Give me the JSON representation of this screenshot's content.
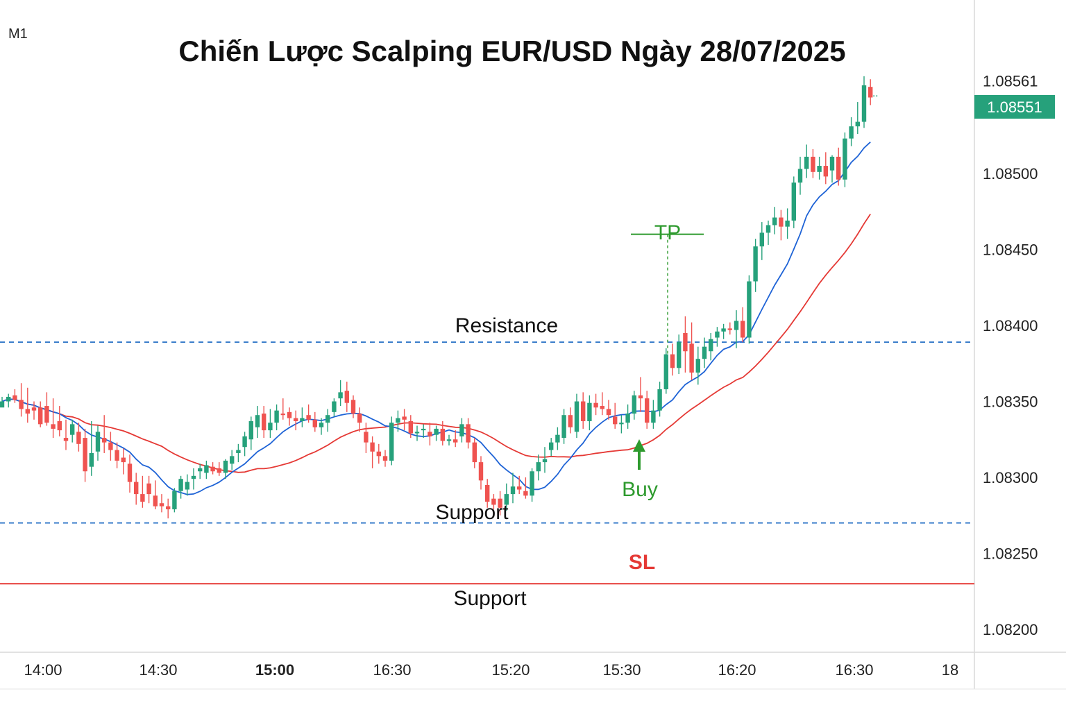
{
  "chart_data": {
    "type": "candlestick",
    "title": "Chiến Lược Scalping EUR/USD Ngày 28/07/2025",
    "timeframe": "M1",
    "y_axis": {
      "ticks": [
        "1.08200",
        "1.08250",
        "1.08300",
        "1.08350",
        "1.08400",
        "1.08450",
        "1.08500",
        "1.08561"
      ],
      "tick_values": [
        1.082,
        1.0825,
        1.083,
        1.0835,
        1.084,
        1.0845,
        1.085,
        1.08561
      ],
      "range": [
        1.08185,
        1.08585
      ],
      "position": "right"
    },
    "x_axis": {
      "labels": [
        "14:00",
        "14:30",
        "15:00",
        "16:30",
        "15:20",
        "15:30",
        "16:20",
        "16:30",
        "18"
      ],
      "bold_label": "15:00"
    },
    "current_price": {
      "label": "1.08551",
      "value": 1.08551,
      "color": "#26a17b"
    },
    "levels": [
      {
        "name": "resistance",
        "label": "Resistance",
        "value": 1.08389,
        "style": "dashed",
        "color": "#1565c0"
      },
      {
        "name": "support",
        "label": "Support",
        "value": 1.0827,
        "style": "dashed",
        "color": "#1565c0"
      },
      {
        "name": "stop-loss",
        "label": "SL",
        "value": 1.0823,
        "style": "solid",
        "color": "#e53935"
      }
    ],
    "lower_label": "Support",
    "take_profit": {
      "label": "TP",
      "value": 1.0846
    },
    "entry": {
      "label": "Buy",
      "value": 1.08326
    },
    "colors": {
      "up": "#26a17b",
      "down": "#ef5350",
      "ma_fast": "#1e63d6",
      "ma_slow": "#e53935",
      "tp": "#2e9a2e"
    },
    "candles": [
      [
        1.08346,
        1.08353,
        1.08349,
        1.0835
      ],
      [
        1.0835,
        1.08355,
        1.08346,
        1.08353
      ],
      [
        1.08354,
        1.08358,
        1.08349,
        1.08351
      ],
      [
        1.08351,
        1.08362,
        1.0834,
        1.08345
      ],
      [
        1.08345,
        1.08359,
        1.08336,
        1.08342
      ],
      [
        1.08346,
        1.0835,
        1.08338,
        1.08344
      ],
      [
        1.08346,
        1.0835,
        1.08333,
        1.08335
      ],
      [
        1.08347,
        1.08356,
        1.08334,
        1.08336
      ],
      [
        1.08335,
        1.08352,
        1.08326,
        1.08332
      ],
      [
        1.08337,
        1.08347,
        1.08327,
        1.08331
      ],
      [
        1.08326,
        1.08338,
        1.08318,
        1.08324
      ],
      [
        1.08328,
        1.08338,
        1.08323,
        1.08335
      ],
      [
        1.0833,
        1.08336,
        1.08317,
        1.08322
      ],
      [
        1.08326,
        1.08332,
        1.08297,
        1.08304
      ],
      [
        1.08307,
        1.08337,
        1.08301,
        1.08316
      ],
      [
        1.08317,
        1.08334,
        1.08311,
        1.0833
      ],
      [
        1.08326,
        1.08341,
        1.08316,
        1.08323
      ],
      [
        1.08323,
        1.0833,
        1.08311,
        1.08318
      ],
      [
        1.08318,
        1.08323,
        1.08306,
        1.08311
      ],
      [
        1.08313,
        1.08319,
        1.08302,
        1.0831
      ],
      [
        1.08309,
        1.08315,
        1.0829,
        1.08297
      ],
      [
        1.08297,
        1.08303,
        1.08282,
        1.08289
      ],
      [
        1.08289,
        1.08301,
        1.0828,
        1.08284
      ],
      [
        1.08296,
        1.08301,
        1.08283,
        1.08289
      ],
      [
        1.08288,
        1.08298,
        1.08279,
        1.08281
      ],
      [
        1.08283,
        1.08289,
        1.08277,
        1.08281
      ],
      [
        1.08281,
        1.08286,
        1.08273,
        1.08279
      ],
      [
        1.08279,
        1.08293,
        1.08277,
        1.08291
      ],
      [
        1.08291,
        1.08301,
        1.08286,
        1.08299
      ],
      [
        1.08292,
        1.08302,
        1.08288,
        1.08297
      ],
      [
        1.08299,
        1.08306,
        1.08292,
        1.08301
      ],
      [
        1.08304,
        1.08309,
        1.08299,
        1.08306
      ],
      [
        1.08303,
        1.08311,
        1.08299,
        1.08308
      ],
      [
        1.08307,
        1.0831,
        1.08302,
        1.08304
      ],
      [
        1.08306,
        1.0831,
        1.08301,
        1.08303
      ],
      [
        1.08303,
        1.08312,
        1.08299,
        1.08311
      ],
      [
        1.08309,
        1.08318,
        1.08305,
        1.08314
      ],
      [
        1.08316,
        1.08322,
        1.0831,
        1.08318
      ],
      [
        1.0832,
        1.0833,
        1.08314,
        1.08327
      ],
      [
        1.08325,
        1.0834,
        1.08318,
        1.08337
      ],
      [
        1.08333,
        1.08347,
        1.08326,
        1.08341
      ],
      [
        1.08342,
        1.08347,
        1.08326,
        1.08331
      ],
      [
        1.08331,
        1.08345,
        1.08326,
        1.08336
      ],
      [
        1.08336,
        1.08348,
        1.08331,
        1.08344
      ],
      [
        1.08342,
        1.08352,
        1.08338,
        1.08341
      ],
      [
        1.08343,
        1.08346,
        1.08334,
        1.08339
      ],
      [
        1.08339,
        1.08344,
        1.08331,
        1.08337
      ],
      [
        1.08337,
        1.08346,
        1.08333,
        1.08339
      ],
      [
        1.08341,
        1.08348,
        1.08336,
        1.08338
      ],
      [
        1.08338,
        1.08343,
        1.0833,
        1.08333
      ],
      [
        1.08333,
        1.08339,
        1.08328,
        1.08336
      ],
      [
        1.08336,
        1.08345,
        1.0833,
        1.08341
      ],
      [
        1.08343,
        1.08352,
        1.0834,
        1.0835
      ],
      [
        1.08352,
        1.08364,
        1.08347,
        1.08356
      ],
      [
        1.08357,
        1.08363,
        1.08343,
        1.08349
      ],
      [
        1.08351,
        1.08354,
        1.08339,
        1.08342
      ],
      [
        1.08342,
        1.08346,
        1.0833,
        1.08336
      ],
      [
        1.0833,
        1.08336,
        1.08316,
        1.08323
      ],
      [
        1.08323,
        1.08327,
        1.08306,
        1.08317
      ],
      [
        1.08317,
        1.08322,
        1.08309,
        1.08314
      ],
      [
        1.08314,
        1.08318,
        1.08307,
        1.08311
      ],
      [
        1.08311,
        1.0834,
        1.08308,
        1.08336
      ],
      [
        1.08336,
        1.08344,
        1.0833,
        1.08339
      ],
      [
        1.0834,
        1.08345,
        1.08331,
        1.08338
      ],
      [
        1.08337,
        1.08341,
        1.08326,
        1.08329
      ],
      [
        1.08329,
        1.08334,
        1.08324,
        1.0833
      ],
      [
        1.08331,
        1.08335,
        1.08326,
        1.08332
      ],
      [
        1.0833,
        1.08336,
        1.08321,
        1.08327
      ],
      [
        1.08328,
        1.08334,
        1.08324,
        1.08332
      ],
      [
        1.08332,
        1.08337,
        1.08321,
        1.08324
      ],
      [
        1.08324,
        1.08328,
        1.08321,
        1.08325
      ],
      [
        1.08325,
        1.08331,
        1.0832,
        1.08323
      ],
      [
        1.08327,
        1.08339,
        1.08323,
        1.08335
      ],
      [
        1.08335,
        1.08339,
        1.08319,
        1.08323
      ],
      [
        1.08323,
        1.08326,
        1.08306,
        1.0831
      ],
      [
        1.0831,
        1.08314,
        1.08292,
        1.08298
      ],
      [
        1.08295,
        1.08299,
        1.0828,
        1.08284
      ],
      [
        1.08286,
        1.08289,
        1.08279,
        1.08282
      ],
      [
        1.08286,
        1.08291,
        1.08275,
        1.0828
      ],
      [
        1.08282,
        1.08296,
        1.08278,
        1.08289
      ],
      [
        1.08289,
        1.08303,
        1.08283,
        1.08294
      ],
      [
        1.08294,
        1.08301,
        1.08289,
        1.08292
      ],
      [
        1.08291,
        1.083,
        1.08286,
        1.08288
      ],
      [
        1.08288,
        1.08306,
        1.08284,
        1.08304
      ],
      [
        1.08304,
        1.08315,
        1.08298,
        1.0831
      ],
      [
        1.0831,
        1.0832,
        1.08303,
        1.08312
      ],
      [
        1.08318,
        1.08326,
        1.08314,
        1.08323
      ],
      [
        1.08323,
        1.08333,
        1.08318,
        1.08328
      ],
      [
        1.08326,
        1.08345,
        1.08322,
        1.08341
      ],
      [
        1.08341,
        1.08346,
        1.08329,
        1.08333
      ],
      [
        1.0833,
        1.08355,
        1.08326,
        1.0835
      ],
      [
        1.0835,
        1.08356,
        1.08332,
        1.08337
      ],
      [
        1.08337,
        1.08354,
        1.08331,
        1.08349
      ],
      [
        1.08349,
        1.08355,
        1.08341,
        1.08346
      ],
      [
        1.08347,
        1.08356,
        1.08341,
        1.08345
      ],
      [
        1.08345,
        1.08351,
        1.08338,
        1.08341
      ],
      [
        1.0834,
        1.08349,
        1.08332,
        1.08335
      ],
      [
        1.08335,
        1.08341,
        1.08329,
        1.08336
      ],
      [
        1.08336,
        1.08348,
        1.08332,
        1.08342
      ],
      [
        1.08342,
        1.08357,
        1.08338,
        1.08354
      ],
      [
        1.08354,
        1.08366,
        1.08343,
        1.08352
      ],
      [
        1.08352,
        1.08357,
        1.08332,
        1.08336
      ],
      [
        1.08336,
        1.08351,
        1.08332,
        1.08344
      ],
      [
        1.08344,
        1.08363,
        1.0834,
        1.08358
      ],
      [
        1.08358,
        1.08385,
        1.08355,
        1.08381
      ],
      [
        1.08381,
        1.08388,
        1.08367,
        1.08372
      ],
      [
        1.08372,
        1.08394,
        1.08368,
        1.08389
      ],
      [
        1.08395,
        1.08406,
        1.08369,
        1.08383
      ],
      [
        1.08388,
        1.08402,
        1.08364,
        1.08369
      ],
      [
        1.08369,
        1.08386,
        1.08361,
        1.08378
      ],
      [
        1.08378,
        1.08392,
        1.08372,
        1.08386
      ],
      [
        1.08383,
        1.08395,
        1.08377,
        1.08391
      ],
      [
        1.08392,
        1.08399,
        1.08386,
        1.08396
      ],
      [
        1.08396,
        1.08401,
        1.08391,
        1.08398
      ],
      [
        1.08398,
        1.08402,
        1.08394,
        1.08397
      ],
      [
        1.08397,
        1.0841,
        1.08385,
        1.08403
      ],
      [
        1.08403,
        1.08412,
        1.08389,
        1.08392
      ],
      [
        1.08392,
        1.08433,
        1.08388,
        1.08429
      ],
      [
        1.08429,
        1.08457,
        1.08422,
        1.08452
      ],
      [
        1.08452,
        1.08468,
        1.08443,
        1.08461
      ],
      [
        1.08461,
        1.08469,
        1.08453,
        1.08466
      ],
      [
        1.08466,
        1.08478,
        1.0846,
        1.08471
      ],
      [
        1.08471,
        1.08476,
        1.08456,
        1.08465
      ],
      [
        1.08465,
        1.08477,
        1.08457,
        1.08469
      ],
      [
        1.08469,
        1.08498,
        1.08464,
        1.08494
      ],
      [
        1.08494,
        1.08511,
        1.08486,
        1.08503
      ],
      [
        1.08503,
        1.08519,
        1.08497,
        1.08511
      ],
      [
        1.08511,
        1.08516,
        1.08497,
        1.08501
      ],
      [
        1.08501,
        1.08511,
        1.08496,
        1.08505
      ],
      [
        1.08505,
        1.08514,
        1.08493,
        1.08498
      ],
      [
        1.08502,
        1.08512,
        1.08494,
        1.08511
      ],
      [
        1.08511,
        1.08517,
        1.08492,
        1.08496
      ],
      [
        1.08496,
        1.08527,
        1.08491,
        1.08523
      ],
      [
        1.08523,
        1.08537,
        1.08518,
        1.08531
      ],
      [
        1.08531,
        1.08547,
        1.08526,
        1.08534
      ],
      [
        1.08534,
        1.08564,
        1.0853,
        1.08558
      ],
      [
        1.08557,
        1.08562,
        1.08545,
        1.0855
      ]
    ]
  }
}
